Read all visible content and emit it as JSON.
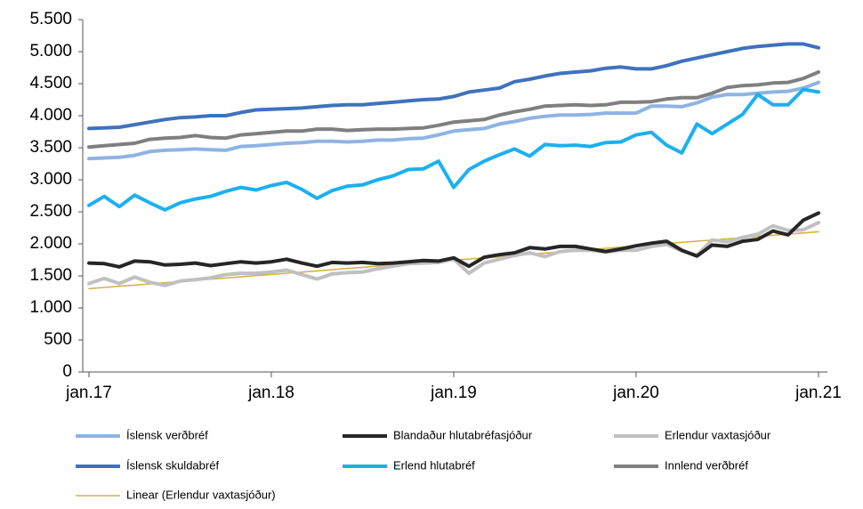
{
  "chart_data": {
    "type": "line",
    "categories": [
      "jan.17",
      null,
      null,
      null,
      null,
      null,
      null,
      null,
      null,
      null,
      null,
      null,
      "jan.18",
      null,
      null,
      null,
      null,
      null,
      null,
      null,
      null,
      null,
      null,
      null,
      "jan.19",
      null,
      null,
      null,
      null,
      null,
      null,
      null,
      null,
      null,
      null,
      null,
      "jan.20",
      null,
      null,
      null,
      null,
      null,
      null,
      null,
      null,
      null,
      null,
      null,
      "jan.21"
    ],
    "ylim": [
      0,
      5500
    ],
    "yticks": [
      0,
      500,
      {
        "value": 1000,
        "label": "1.000"
      },
      {
        "value": 1500,
        "label": "1.500"
      },
      {
        "value": 2000,
        "label": "2.000"
      },
      {
        "value": 2500,
        "label": "2.500"
      },
      {
        "value": 3000,
        "label": "3.000"
      },
      {
        "value": 3500,
        "label": "3.500"
      },
      {
        "value": 4000,
        "label": "4.000"
      },
      {
        "value": 4500,
        "label": "4.500"
      },
      {
        "value": 5000,
        "label": "5.000"
      },
      {
        "value": 5500,
        "label": "5.500"
      }
    ],
    "legend": "bottom",
    "series": [
      {
        "name": "Íslensk verðbréf",
        "color": "#8fb4e3",
        "values": [
          3330,
          3340,
          3350,
          3380,
          3440,
          3460,
          3470,
          3480,
          3470,
          3460,
          3520,
          3530,
          3550,
          3570,
          3580,
          3600,
          3600,
          3590,
          3600,
          3620,
          3620,
          3640,
          3650,
          3700,
          3760,
          3780,
          3800,
          3870,
          3910,
          3960,
          3990,
          4010,
          4010,
          4020,
          4040,
          4040,
          4040,
          4150,
          4150,
          4140,
          4200,
          4290,
          4330,
          4330,
          4350,
          4370,
          4380,
          4430,
          4520
        ]
      },
      {
        "name": "Blandaður hlutabréfasjóður",
        "color": "#262626",
        "values": [
          1700,
          1690,
          1640,
          1730,
          1720,
          1670,
          1680,
          1700,
          1660,
          1690,
          1720,
          1700,
          1720,
          1760,
          1700,
          1650,
          1710,
          1700,
          1710,
          1690,
          1700,
          1720,
          1740,
          1730,
          1780,
          1650,
          1790,
          1830,
          1860,
          1940,
          1920,
          1960,
          1960,
          1920,
          1880,
          1920,
          1970,
          2010,
          2040,
          1900,
          1810,
          1980,
          1960,
          2040,
          2070,
          2200,
          2140,
          2370,
          2480
        ]
      },
      {
        "name": "Erlendur vaxtasjóður",
        "color": "#c0c0c0",
        "values": [
          1380,
          1460,
          1380,
          1480,
          1400,
          1350,
          1420,
          1440,
          1470,
          1520,
          1540,
          1540,
          1560,
          1590,
          1520,
          1450,
          1530,
          1550,
          1560,
          1610,
          1650,
          1690,
          1700,
          1710,
          1760,
          1540,
          1700,
          1760,
          1820,
          1860,
          1800,
          1880,
          1900,
          1900,
          1870,
          1900,
          1900,
          1960,
          1990,
          1890,
          1820,
          2060,
          2030,
          2100,
          2150,
          2280,
          2210,
          2220,
          2330
        ]
      },
      {
        "name": "Íslensk skuldabréf",
        "color": "#3f72bd",
        "values": [
          3800,
          3810,
          3820,
          3860,
          3900,
          3940,
          3970,
          3980,
          4000,
          4000,
          4050,
          4090,
          4100,
          4110,
          4120,
          4140,
          4160,
          4170,
          4170,
          4190,
          4210,
          4230,
          4250,
          4260,
          4300,
          4370,
          4400,
          4430,
          4530,
          4570,
          4620,
          4660,
          4680,
          4700,
          4740,
          4760,
          4730,
          4730,
          4780,
          4850,
          4900,
          4950,
          5000,
          5050,
          5080,
          5100,
          5120,
          5120,
          5060
        ]
      },
      {
        "name": "Erlend hlutabréf",
        "color": "#1cb0ef",
        "values": [
          2600,
          2740,
          2580,
          2760,
          2640,
          2530,
          2640,
          2700,
          2740,
          2820,
          2880,
          2840,
          2910,
          2960,
          2850,
          2710,
          2830,
          2900,
          2920,
          3000,
          3060,
          3160,
          3170,
          3290,
          2880,
          3160,
          3290,
          3390,
          3480,
          3370,
          3550,
          3530,
          3540,
          3520,
          3580,
          3590,
          3700,
          3740,
          3540,
          3420,
          3870,
          3720,
          3870,
          4020,
          4330,
          4170,
          4170,
          4410,
          4370
        ]
      },
      {
        "name": "Innlend verðbréf",
        "color": "#7f7f7f",
        "values": [
          3510,
          3530,
          3550,
          3570,
          3630,
          3650,
          3660,
          3690,
          3660,
          3650,
          3700,
          3720,
          3740,
          3760,
          3760,
          3790,
          3790,
          3770,
          3780,
          3790,
          3790,
          3800,
          3810,
          3850,
          3900,
          3920,
          3940,
          4010,
          4060,
          4100,
          4150,
          4160,
          4170,
          4160,
          4170,
          4210,
          4210,
          4220,
          4260,
          4280,
          4280,
          4350,
          4440,
          4470,
          4480,
          4510,
          4520,
          4580,
          4680
        ]
      },
      {
        "name": "Linear (Erlendur vaxtasjóður)",
        "color": "#d4b44a",
        "thin": true,
        "values": [
          1300,
          1319,
          1337,
          1356,
          1374,
          1393,
          1411,
          1430,
          1448,
          1467,
          1485,
          1504,
          1522,
          1541,
          1559,
          1578,
          1596,
          1615,
          1633,
          1652,
          1670,
          1689,
          1707,
          1726,
          1744,
          1763,
          1781,
          1800,
          1819,
          1837,
          1856,
          1874,
          1893,
          1911,
          1930,
          1948,
          1967,
          1985,
          2004,
          2022,
          2041,
          2059,
          2078,
          2096,
          2115,
          2133,
          2152,
          2170,
          2189
        ]
      }
    ]
  }
}
